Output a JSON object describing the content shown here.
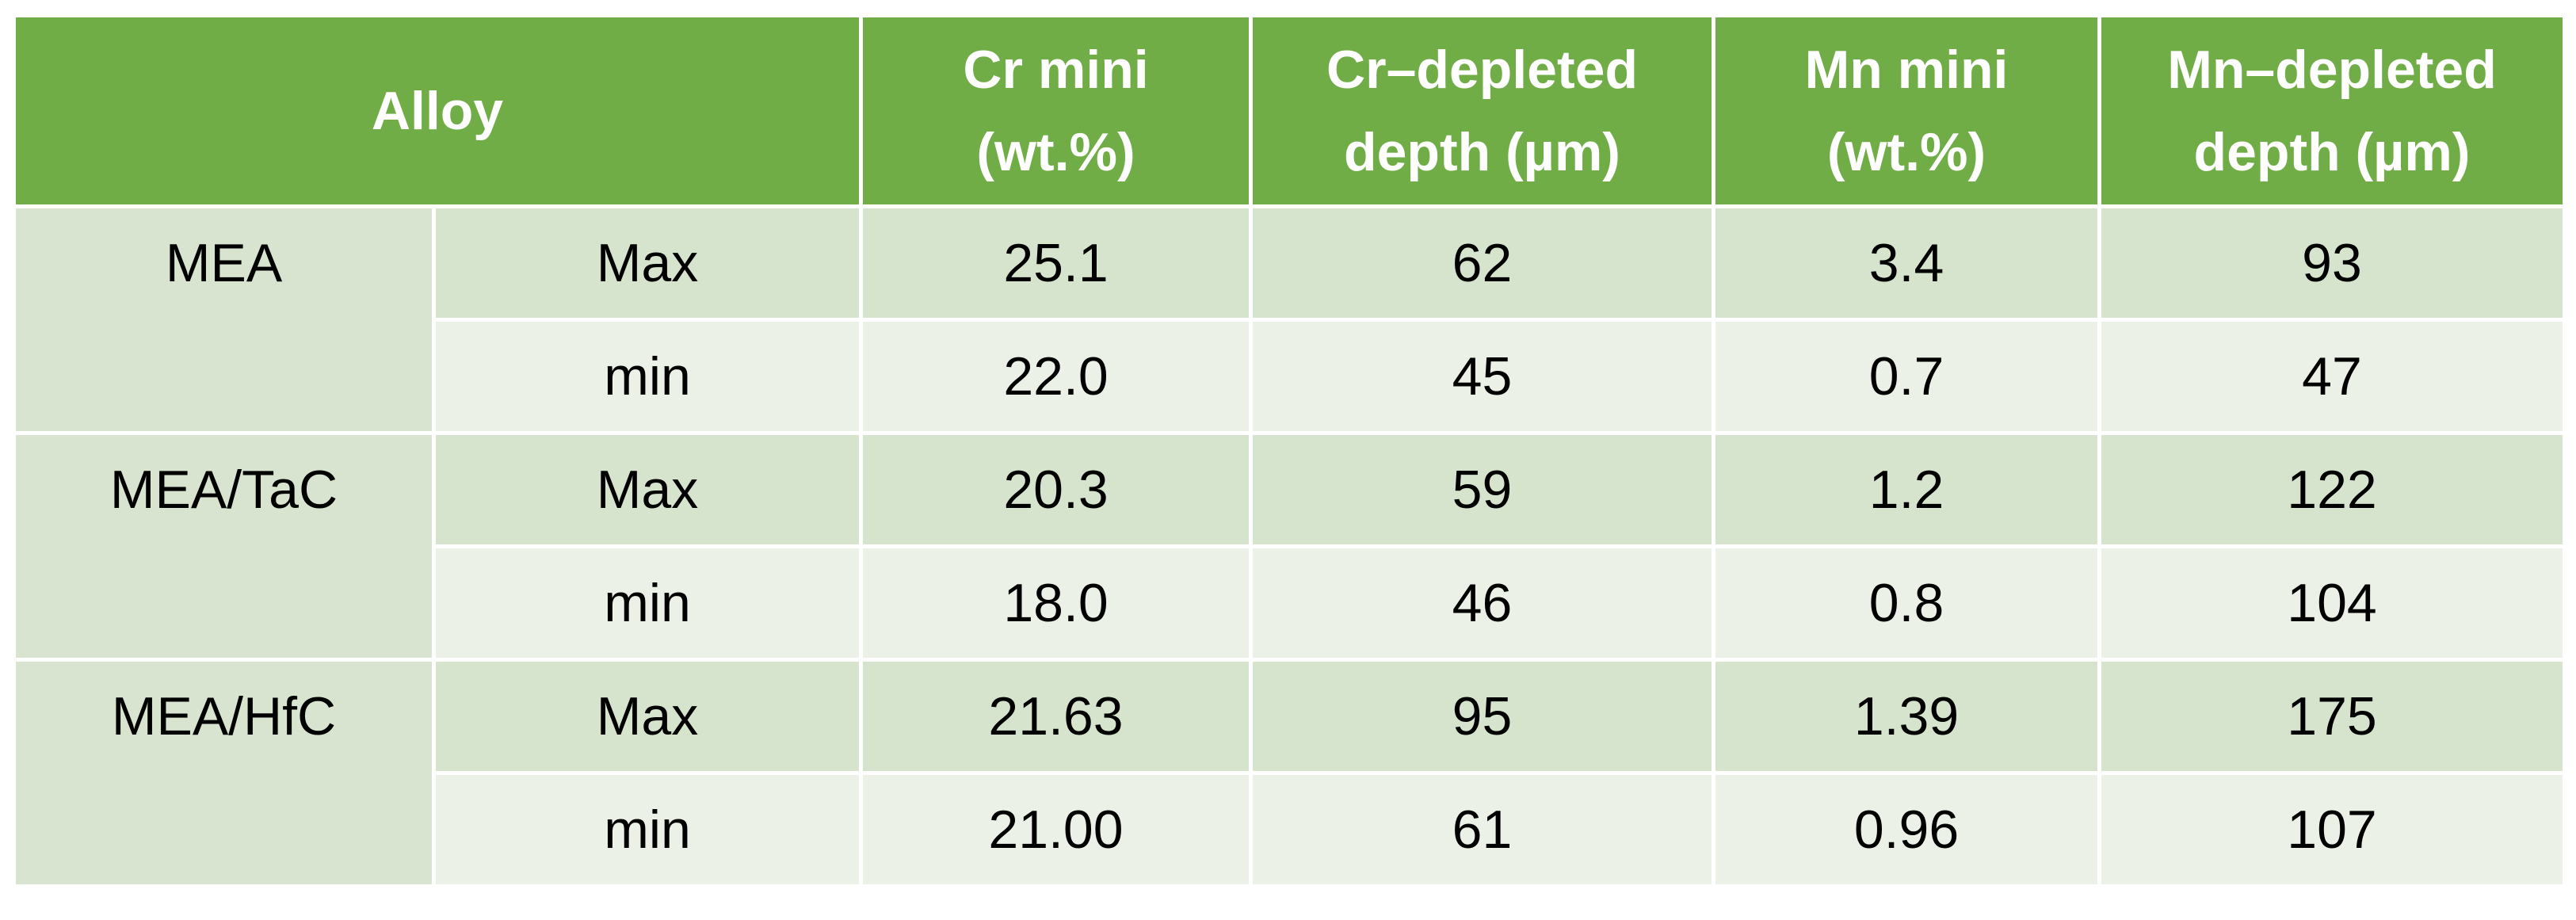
{
  "table": {
    "header": [
      [
        "Alloy"
      ],
      [
        "Cr mini",
        "(wt.%)"
      ],
      [
        "Cr–depleted",
        "depth (µm)"
      ],
      [
        "Mn mini",
        "(wt.%)"
      ],
      [
        "Mn–depleted",
        "depth (µm)"
      ]
    ],
    "groups": [
      {
        "alloy": "MEA",
        "rows": [
          [
            "Max",
            "25.1",
            "62",
            "3.4",
            "93"
          ],
          [
            "min",
            "22.0",
            "45",
            "0.7",
            "47"
          ]
        ]
      },
      {
        "alloy": "MEA/TaC",
        "rows": [
          [
            "Max",
            "20.3",
            "59",
            "1.2",
            "122"
          ],
          [
            "min",
            "18.0",
            "46",
            "0.8",
            "104"
          ]
        ]
      },
      {
        "alloy": "MEA/HfC",
        "rows": [
          [
            "Max",
            "21.63",
            "95",
            "1.39",
            "175"
          ],
          [
            "min",
            "21.00",
            "61",
            "0.96",
            "107"
          ]
        ]
      }
    ]
  }
}
